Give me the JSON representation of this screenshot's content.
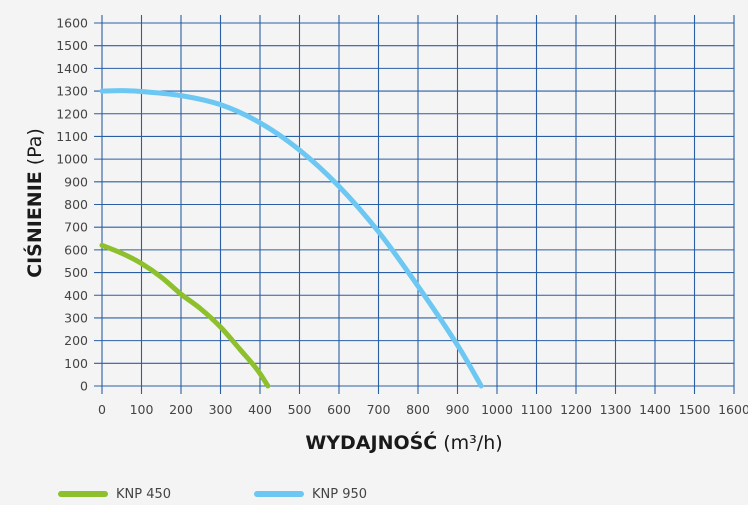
{
  "chart_data": {
    "type": "line",
    "xlabel_bold": "WYDAJNOŚĆ",
    "xlabel_unit": "(m³/h)",
    "ylabel_bold": "CIŚNIENIE",
    "ylabel_unit": "(Pa)",
    "xlim": [
      0,
      1600
    ],
    "ylim": [
      0,
      1600
    ],
    "x_ticks": [
      0,
      100,
      200,
      300,
      400,
      500,
      600,
      700,
      800,
      900,
      1000,
      1100,
      1200,
      1300,
      1400,
      1500,
      1600
    ],
    "y_ticks": [
      0,
      100,
      200,
      300,
      400,
      500,
      600,
      700,
      800,
      900,
      1000,
      1100,
      1200,
      1300,
      1400,
      1500,
      1600
    ],
    "grid": true,
    "legend_position": "bottom-left",
    "series": [
      {
        "name": "KNP 450",
        "color": "#8dc02c",
        "x": [
          0,
          50,
          100,
          150,
          200,
          250,
          300,
          350,
          380,
          400,
          420
        ],
        "y": [
          620,
          585,
          540,
          480,
          405,
          340,
          260,
          160,
          100,
          55,
          0
        ]
      },
      {
        "name": "KNP 950",
        "color": "#6cc8f2",
        "x": [
          0,
          50,
          100,
          200,
          300,
          400,
          500,
          600,
          700,
          800,
          900,
          960
        ],
        "y": [
          1300,
          1302,
          1298,
          1280,
          1240,
          1160,
          1040,
          880,
          680,
          440,
          180,
          0
        ]
      }
    ]
  }
}
